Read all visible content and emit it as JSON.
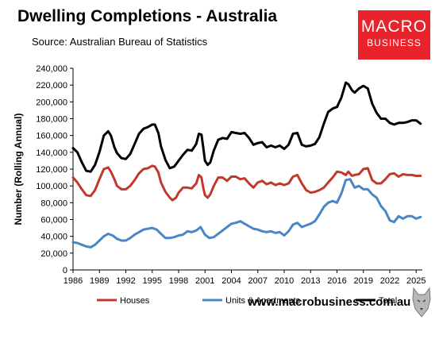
{
  "header": {
    "title": "Dwelling Completions - Australia",
    "source": "Source: Australian Bureau of Statistics"
  },
  "logo": {
    "line1": "MACRO",
    "line2": "BUSINESS",
    "color": "#e8232c"
  },
  "footer": {
    "url": "www.macrobusiness.com.au"
  },
  "chart_data": {
    "type": "line",
    "ylabel": "Number (Rolling Annual)",
    "xlabel": "",
    "ylim": [
      0,
      240000
    ],
    "yticks": [
      0,
      20000,
      40000,
      60000,
      80000,
      100000,
      120000,
      140000,
      160000,
      180000,
      200000,
      220000,
      240000
    ],
    "ytick_labels": [
      "0",
      "20,000",
      "40,000",
      "60,000",
      "80,000",
      "100,000",
      "120,000",
      "140,000",
      "160,000",
      "180,000",
      "200,000",
      "220,000",
      "240,000"
    ],
    "xlim": [
      1986,
      2025.7
    ],
    "xticks": [
      1986,
      1989,
      1992,
      1995,
      1998,
      2001,
      2004,
      2007,
      2010,
      2013,
      2016,
      2019,
      2022,
      2025
    ],
    "xtick_labels": [
      "1986",
      "1989",
      "1992",
      "1995",
      "1998",
      "2001",
      "2004",
      "2007",
      "2010",
      "2013",
      "2016",
      "2019",
      "2022",
      "2025"
    ],
    "grid": false,
    "legend_position": "bottom",
    "series": [
      {
        "name": "Houses",
        "color": "#c0392b",
        "points": [
          [
            1986,
            110000
          ],
          [
            1986.5,
            104000
          ],
          [
            1987,
            96000
          ],
          [
            1987.5,
            89000
          ],
          [
            1988,
            88000
          ],
          [
            1988.5,
            95000
          ],
          [
            1989,
            108000
          ],
          [
            1989.5,
            120000
          ],
          [
            1990,
            122000
          ],
          [
            1990.3,
            117000
          ],
          [
            1990.7,
            108000
          ],
          [
            1991,
            100000
          ],
          [
            1991.5,
            96000
          ],
          [
            1992,
            96000
          ],
          [
            1992.5,
            100000
          ],
          [
            1993,
            107000
          ],
          [
            1993.5,
            115000
          ],
          [
            1994,
            120000
          ],
          [
            1994.5,
            121000
          ],
          [
            1995,
            124000
          ],
          [
            1995.3,
            123000
          ],
          [
            1995.7,
            116000
          ],
          [
            1996,
            104000
          ],
          [
            1996.5,
            93000
          ],
          [
            1997,
            86000
          ],
          [
            1997.3,
            83000
          ],
          [
            1997.7,
            86000
          ],
          [
            1998,
            92000
          ],
          [
            1998.5,
            98000
          ],
          [
            1999,
            98000
          ],
          [
            1999.5,
            97000
          ],
          [
            2000,
            103000
          ],
          [
            2000.3,
            113000
          ],
          [
            2000.6,
            110000
          ],
          [
            2000.8,
            98000
          ],
          [
            2001,
            89000
          ],
          [
            2001.3,
            86000
          ],
          [
            2001.6,
            90000
          ],
          [
            2002,
            100000
          ],
          [
            2002.5,
            110000
          ],
          [
            2003,
            110000
          ],
          [
            2003.5,
            106000
          ],
          [
            2004,
            111000
          ],
          [
            2004.5,
            111000
          ],
          [
            2005,
            108000
          ],
          [
            2005.5,
            109000
          ],
          [
            2006,
            103000
          ],
          [
            2006.5,
            98000
          ],
          [
            2007,
            104000
          ],
          [
            2007.5,
            106000
          ],
          [
            2008,
            102000
          ],
          [
            2008.5,
            104000
          ],
          [
            2009,
            101000
          ],
          [
            2009.5,
            103000
          ],
          [
            2010,
            101000
          ],
          [
            2010.5,
            103000
          ],
          [
            2011,
            111000
          ],
          [
            2011.5,
            113000
          ],
          [
            2012,
            103000
          ],
          [
            2012.5,
            95000
          ],
          [
            2013,
            92000
          ],
          [
            2013.5,
            93000
          ],
          [
            2014,
            95000
          ],
          [
            2014.5,
            98000
          ],
          [
            2015,
            104000
          ],
          [
            2015.5,
            110000
          ],
          [
            2016,
            117000
          ],
          [
            2016.5,
            116000
          ],
          [
            2017,
            113000
          ],
          [
            2017.3,
            117000
          ],
          [
            2017.7,
            112000
          ],
          [
            2018,
            113000
          ],
          [
            2018.5,
            114000
          ],
          [
            2019,
            120000
          ],
          [
            2019.5,
            121000
          ],
          [
            2020,
            107000
          ],
          [
            2020.5,
            103000
          ],
          [
            2021,
            103000
          ],
          [
            2021.5,
            108000
          ],
          [
            2022,
            114000
          ],
          [
            2022.5,
            115000
          ],
          [
            2023,
            111000
          ],
          [
            2023.5,
            114000
          ],
          [
            2024,
            113000
          ],
          [
            2024.5,
            113000
          ],
          [
            2025,
            112000
          ],
          [
            2025.5,
            112000
          ]
        ]
      },
      {
        "name": "Units & Apartments",
        "color": "#4a86c5",
        "points": [
          [
            1986,
            33000
          ],
          [
            1986.5,
            32000
          ],
          [
            1987,
            30000
          ],
          [
            1987.5,
            28000
          ],
          [
            1988,
            27000
          ],
          [
            1988.5,
            30000
          ],
          [
            1989,
            35000
          ],
          [
            1989.5,
            40000
          ],
          [
            1990,
            43000
          ],
          [
            1990.5,
            41000
          ],
          [
            1991,
            37000
          ],
          [
            1991.5,
            35000
          ],
          [
            1992,
            35000
          ],
          [
            1992.5,
            38000
          ],
          [
            1993,
            42000
          ],
          [
            1993.5,
            45000
          ],
          [
            1994,
            48000
          ],
          [
            1994.5,
            49000
          ],
          [
            1995,
            50000
          ],
          [
            1995.5,
            48000
          ],
          [
            1996,
            43000
          ],
          [
            1996.5,
            38000
          ],
          [
            1997,
            38000
          ],
          [
            1997.5,
            39000
          ],
          [
            1998,
            41000
          ],
          [
            1998.5,
            42000
          ],
          [
            1999,
            46000
          ],
          [
            1999.5,
            45000
          ],
          [
            2000,
            47000
          ],
          [
            2000.5,
            51000
          ],
          [
            2001,
            42000
          ],
          [
            2001.5,
            38000
          ],
          [
            2002,
            39000
          ],
          [
            2002.5,
            43000
          ],
          [
            2003,
            47000
          ],
          [
            2003.5,
            51000
          ],
          [
            2004,
            55000
          ],
          [
            2004.5,
            56000
          ],
          [
            2005,
            58000
          ],
          [
            2005.5,
            55000
          ],
          [
            2006,
            52000
          ],
          [
            2006.5,
            49000
          ],
          [
            2007,
            48000
          ],
          [
            2007.5,
            46000
          ],
          [
            2008,
            45000
          ],
          [
            2008.5,
            46000
          ],
          [
            2009,
            44000
          ],
          [
            2009.5,
            45000
          ],
          [
            2010,
            41000
          ],
          [
            2010.5,
            46000
          ],
          [
            2011,
            54000
          ],
          [
            2011.5,
            56000
          ],
          [
            2012,
            51000
          ],
          [
            2012.5,
            53000
          ],
          [
            2013,
            55000
          ],
          [
            2013.5,
            58000
          ],
          [
            2014,
            66000
          ],
          [
            2014.5,
            75000
          ],
          [
            2015,
            80000
          ],
          [
            2015.5,
            82000
          ],
          [
            2016,
            80000
          ],
          [
            2016.5,
            91000
          ],
          [
            2017,
            107000
          ],
          [
            2017.5,
            108000
          ],
          [
            2018,
            98000
          ],
          [
            2018.5,
            100000
          ],
          [
            2019,
            96000
          ],
          [
            2019.5,
            96000
          ],
          [
            2020,
            90000
          ],
          [
            2020.5,
            86000
          ],
          [
            2021,
            76000
          ],
          [
            2021.5,
            70000
          ],
          [
            2022,
            59000
          ],
          [
            2022.5,
            57000
          ],
          [
            2023,
            64000
          ],
          [
            2023.5,
            61000
          ],
          [
            2024,
            64000
          ],
          [
            2024.5,
            64000
          ],
          [
            2025,
            61000
          ],
          [
            2025.5,
            63000
          ]
        ]
      },
      {
        "name": "Total",
        "color": "#000000",
        "points": [
          [
            1986,
            145000
          ],
          [
            1986.5,
            140000
          ],
          [
            1987,
            128000
          ],
          [
            1987.5,
            118000
          ],
          [
            1988,
            117000
          ],
          [
            1988.5,
            125000
          ],
          [
            1989,
            140000
          ],
          [
            1989.5,
            160000
          ],
          [
            1990,
            165000
          ],
          [
            1990.3,
            160000
          ],
          [
            1990.7,
            146000
          ],
          [
            1991,
            139000
          ],
          [
            1991.5,
            133000
          ],
          [
            1992,
            132000
          ],
          [
            1992.5,
            138000
          ],
          [
            1993,
            150000
          ],
          [
            1993.5,
            162000
          ],
          [
            1994,
            168000
          ],
          [
            1994.5,
            170000
          ],
          [
            1995,
            173000
          ],
          [
            1995.3,
            173000
          ],
          [
            1995.7,
            163000
          ],
          [
            1996,
            147000
          ],
          [
            1996.5,
            131000
          ],
          [
            1997,
            121000
          ],
          [
            1997.5,
            123000
          ],
          [
            1998,
            130000
          ],
          [
            1998.5,
            137000
          ],
          [
            1999,
            143000
          ],
          [
            1999.5,
            142000
          ],
          [
            2000,
            150000
          ],
          [
            2000.3,
            162000
          ],
          [
            2000.6,
            161000
          ],
          [
            2000.8,
            146000
          ],
          [
            2001,
            130000
          ],
          [
            2001.3,
            125000
          ],
          [
            2001.6,
            128000
          ],
          [
            2002,
            142000
          ],
          [
            2002.5,
            155000
          ],
          [
            2003,
            157000
          ],
          [
            2003.5,
            156000
          ],
          [
            2004,
            164000
          ],
          [
            2004.5,
            163000
          ],
          [
            2005,
            162000
          ],
          [
            2005.5,
            163000
          ],
          [
            2006,
            157000
          ],
          [
            2006.5,
            149000
          ],
          [
            2007,
            151000
          ],
          [
            2007.5,
            152000
          ],
          [
            2008,
            146000
          ],
          [
            2008.5,
            148000
          ],
          [
            2009,
            146000
          ],
          [
            2009.5,
            148000
          ],
          [
            2010,
            144000
          ],
          [
            2010.5,
            149000
          ],
          [
            2011,
            162000
          ],
          [
            2011.5,
            163000
          ],
          [
            2012,
            149000
          ],
          [
            2012.5,
            147000
          ],
          [
            2013,
            148000
          ],
          [
            2013.5,
            150000
          ],
          [
            2014,
            158000
          ],
          [
            2014.5,
            174000
          ],
          [
            2015,
            188000
          ],
          [
            2015.5,
            192000
          ],
          [
            2016,
            194000
          ],
          [
            2016.5,
            205000
          ],
          [
            2017,
            223000
          ],
          [
            2017.3,
            221000
          ],
          [
            2017.7,
            214000
          ],
          [
            2018,
            211000
          ],
          [
            2018.5,
            216000
          ],
          [
            2019,
            219000
          ],
          [
            2019.5,
            216000
          ],
          [
            2020,
            198000
          ],
          [
            2020.5,
            187000
          ],
          [
            2021,
            180000
          ],
          [
            2021.5,
            180000
          ],
          [
            2022,
            175000
          ],
          [
            2022.5,
            173000
          ],
          [
            2023,
            175000
          ],
          [
            2023.5,
            175000
          ],
          [
            2024,
            176000
          ],
          [
            2024.5,
            178000
          ],
          [
            2025,
            178000
          ],
          [
            2025.5,
            174000
          ]
        ]
      }
    ]
  }
}
